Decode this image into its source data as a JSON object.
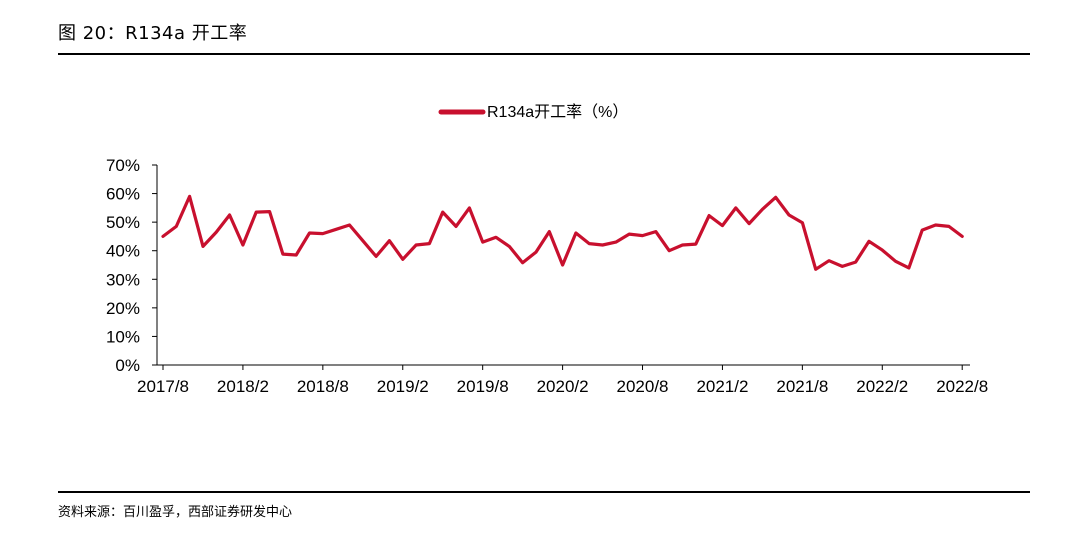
{
  "figure": {
    "title": "图 20：R134a 开工率",
    "source": "资料来源：百川盈孚，西部证券研发中心"
  },
  "chart_data": {
    "type": "line",
    "legend": "top-center",
    "grid": false,
    "ylabel": "",
    "xlabel": "",
    "ylim": [
      0,
      70
    ],
    "yticks": [
      "0%",
      "10%",
      "20%",
      "30%",
      "40%",
      "50%",
      "60%",
      "70%"
    ],
    "xticks": [
      "2017/8",
      "2018/2",
      "2018/8",
      "2019/2",
      "2019/8",
      "2020/2",
      "2020/8",
      "2021/2",
      "2021/8",
      "2022/2",
      "2022/8"
    ],
    "line_color": "#c8102e",
    "series": [
      {
        "name": "R134a开工率（%）",
        "values": [
          45,
          48.5,
          59,
          41.5,
          46.5,
          52.5,
          42,
          53.5,
          53.7,
          38.8,
          38.5,
          46.2,
          46,
          47.5,
          49,
          43.5,
          38,
          43.5,
          37,
          42,
          42.5,
          53.5,
          48.5,
          55,
          43,
          44.7,
          41.5,
          35.8,
          39.5,
          46.7,
          35,
          46.2,
          42.5,
          42,
          43,
          45.8,
          45.3,
          46.7,
          40,
          42,
          42.3,
          52.3,
          48.8,
          55,
          49.5,
          54.5,
          58.7,
          52.5,
          49.8,
          33.5,
          36.5,
          34.5,
          36,
          43.3,
          40.2,
          36.3,
          34,
          47.2,
          49,
          48.5,
          45
        ]
      }
    ]
  }
}
